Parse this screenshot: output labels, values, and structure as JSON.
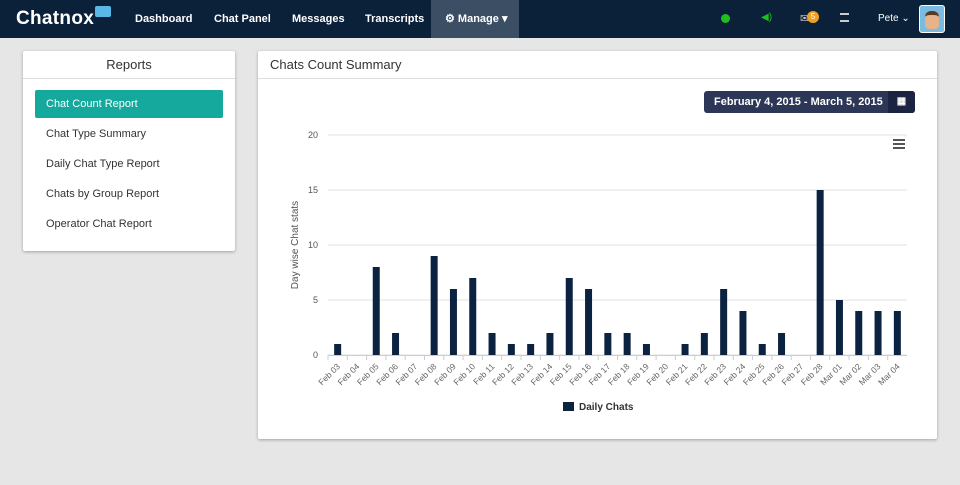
{
  "nav": {
    "brand": "Chatnox",
    "items": [
      "Dashboard",
      "Chat Panel",
      "Messages",
      "Transcripts"
    ],
    "manage": "Manage",
    "badge": "5",
    "user": "Pete"
  },
  "reports": {
    "title": "Reports",
    "items": [
      "Chat Count Report",
      "Chat Type Summary",
      "Daily Chat Type Report",
      "Chats by Group Report",
      "Operator Chat Report"
    ]
  },
  "summary": {
    "title": "Chats Count Summary",
    "date_range": "February 4, 2015 - March 5, 2015"
  },
  "colors": {
    "bar": "#0b2340",
    "accent": "#15a89c",
    "nav": "#0b2039"
  },
  "chart_data": {
    "type": "bar",
    "title": "",
    "ylabel": "Day wise Chat stats",
    "xlabel": "",
    "ylim": [
      0,
      20
    ],
    "yticks": [
      0,
      5,
      10,
      15,
      20
    ],
    "legend": "bottom",
    "grid": true,
    "categories": [
      "Feb 03",
      "Feb 04",
      "Feb 05",
      "Feb 06",
      "Feb 07",
      "Feb 08",
      "Feb 09",
      "Feb 10",
      "Feb 11",
      "Feb 12",
      "Feb 13",
      "Feb 14",
      "Feb 15",
      "Feb 16",
      "Feb 17",
      "Feb 18",
      "Feb 19",
      "Feb 20",
      "Feb 21",
      "Feb 22",
      "Feb 23",
      "Feb 24",
      "Feb 25",
      "Feb 26",
      "Feb 27",
      "Feb 28",
      "Mar 01",
      "Mar 02",
      "Mar 03",
      "Mar 04"
    ],
    "series": [
      {
        "name": "Daily Chats",
        "values": [
          1,
          0,
          8,
          2,
          0,
          9,
          6,
          7,
          2,
          1,
          1,
          2,
          7,
          6,
          2,
          2,
          1,
          0,
          1,
          2,
          6,
          4,
          1,
          2,
          0,
          15,
          5,
          4,
          4,
          4
        ]
      }
    ]
  }
}
